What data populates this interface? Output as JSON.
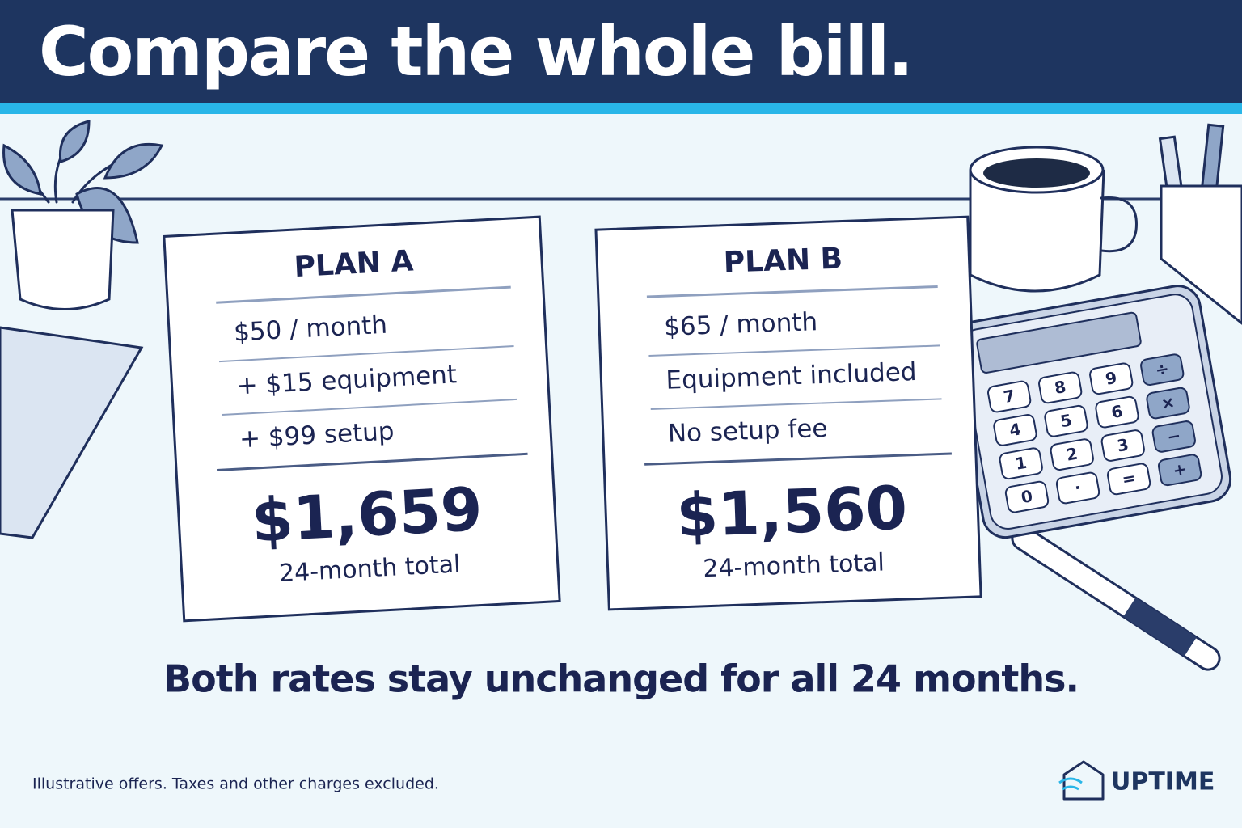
{
  "header": {
    "title": "Compare the whole bill."
  },
  "plans": [
    {
      "name": "PLAN A",
      "lines": [
        "$50 / month",
        "+ $15 equipment",
        "+ $99 setup"
      ],
      "total": "$1,659",
      "total_label": "24-month total"
    },
    {
      "name": "PLAN B",
      "lines": [
        "$65 / month",
        "Equipment included",
        "No setup fee"
      ],
      "total": "$1,560",
      "total_label": "24-month total"
    }
  ],
  "tagline": "Both rates stay unchanged for all 24 months.",
  "footnote": "Illustrative offers. Taxes and other charges excluded.",
  "brand": "UPTIME",
  "calculator": {
    "keys": [
      "7",
      "8",
      "9",
      "÷",
      "4",
      "5",
      "6",
      "×",
      "1",
      "2",
      "3",
      "−",
      "0",
      "·",
      "=",
      "+"
    ]
  }
}
